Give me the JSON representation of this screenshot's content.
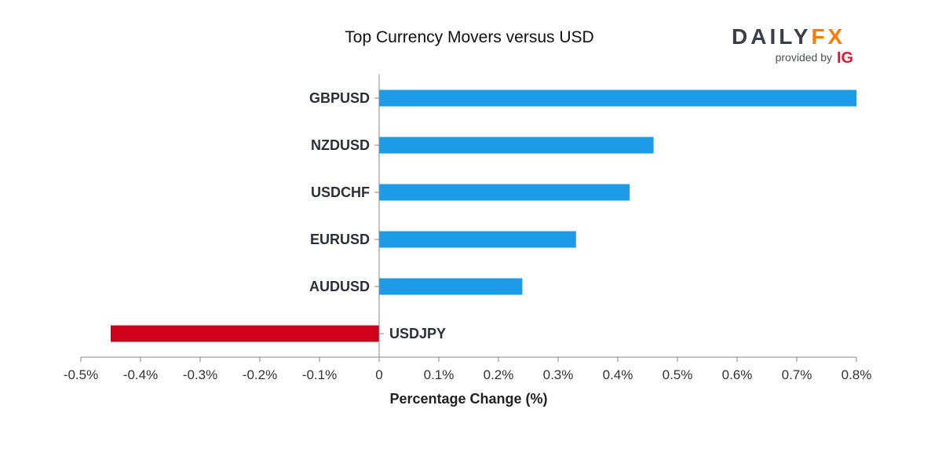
{
  "chart_data": {
    "type": "bar",
    "orientation": "horizontal",
    "title": "Top Currency Movers versus USD",
    "xlabel": "Percentage Change (%)",
    "ylabel": "",
    "categories": [
      "GBPUSD",
      "NZDUSD",
      "USDCHF",
      "EURUSD",
      "AUDUSD",
      "USDJPY"
    ],
    "values": [
      0.8,
      0.46,
      0.42,
      0.33,
      0.24,
      -0.45
    ],
    "xlim": [
      -0.5,
      0.8
    ],
    "ticks": [
      -0.5,
      -0.4,
      -0.3,
      -0.2,
      -0.1,
      0,
      0.1,
      0.2,
      0.3,
      0.4,
      0.5,
      0.6,
      0.7,
      0.8
    ],
    "tick_labels": [
      "-0.5%",
      "-0.4%",
      "-0.3%",
      "-0.2%",
      "-0.1%",
      "0",
      "0.1%",
      "0.2%",
      "0.3%",
      "0.4%",
      "0.5%",
      "0.6%",
      "0.7%",
      "0.8%"
    ],
    "grid": false,
    "colors": {
      "positive": "#1d9be6",
      "negative": "#d0021b"
    }
  },
  "logo": {
    "brand_dark": "DAILY",
    "brand_accent": "FX",
    "provided_by": "provided by",
    "partner": "IG",
    "colors": {
      "dark": "#3a3f4b",
      "accent": "#ff7a00"
    }
  }
}
